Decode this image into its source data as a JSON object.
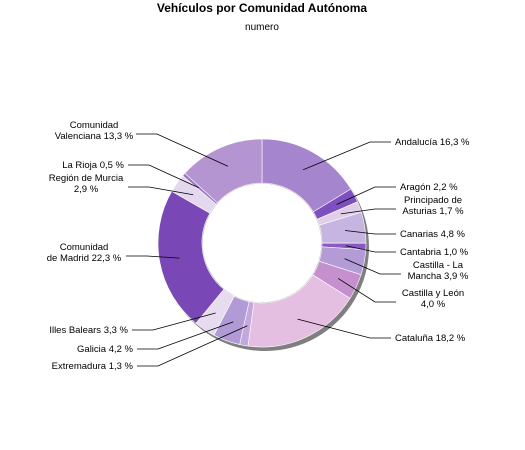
{
  "chart_data": {
    "type": "pie",
    "title": "Vehículos por Comunidad Autónoma",
    "subtitle": "numero",
    "unit": "%",
    "slices": [
      {
        "label": "Andalucía",
        "value": 16.3,
        "value_text": "16,3 %",
        "color": "#a685cf"
      },
      {
        "label": "Aragón",
        "value": 2.2,
        "value_text": "2,2 %",
        "color": "#7e4fbe"
      },
      {
        "label": "Principado de Asturias",
        "value": 1.7,
        "value_text": "1,7 %",
        "color": "#e1cfe9"
      },
      {
        "label": "Canarias",
        "value": 4.8,
        "value_text": "4,8 %",
        "color": "#c6b4e1"
      },
      {
        "label": "Cantabria",
        "value": 1.0,
        "value_text": "1,0 %",
        "color": "#8a5ac4"
      },
      {
        "label": "Castilla - La Mancha",
        "value": 3.9,
        "value_text": "3,9 %",
        "color": "#b39bd5"
      },
      {
        "label": "Castilla y León",
        "value": 4.0,
        "value_text": "4,0 %",
        "color": "#c690cf"
      },
      {
        "label": "Cataluña",
        "value": 18.2,
        "value_text": "18,2 %",
        "color": "#e4bfe2"
      },
      {
        "label": "Extremadura",
        "value": 1.3,
        "value_text": "1,3 %",
        "color": "#c2a8dc"
      },
      {
        "label": "Galicia",
        "value": 4.2,
        "value_text": "4,2 %",
        "color": "#b29ad7"
      },
      {
        "label": "Illes Balears",
        "value": 3.3,
        "value_text": "3,3 %",
        "color": "#e6dbef"
      },
      {
        "label": "Comunidad de Madrid",
        "value": 22.3,
        "value_text": "22,3 %",
        "color": "#7a48b6"
      },
      {
        "label": "Región de Murcia",
        "value": 2.9,
        "value_text": "2,9 %",
        "color": "#e4d8ee"
      },
      {
        "label": "La Rioja",
        "value": 0.5,
        "value_text": "0,5 %",
        "color": "#9a73c8"
      },
      {
        "label": "Comunidad Valenciana",
        "value": 13.3,
        "value_text": "13,3 %",
        "color": "#b495d2"
      }
    ]
  }
}
